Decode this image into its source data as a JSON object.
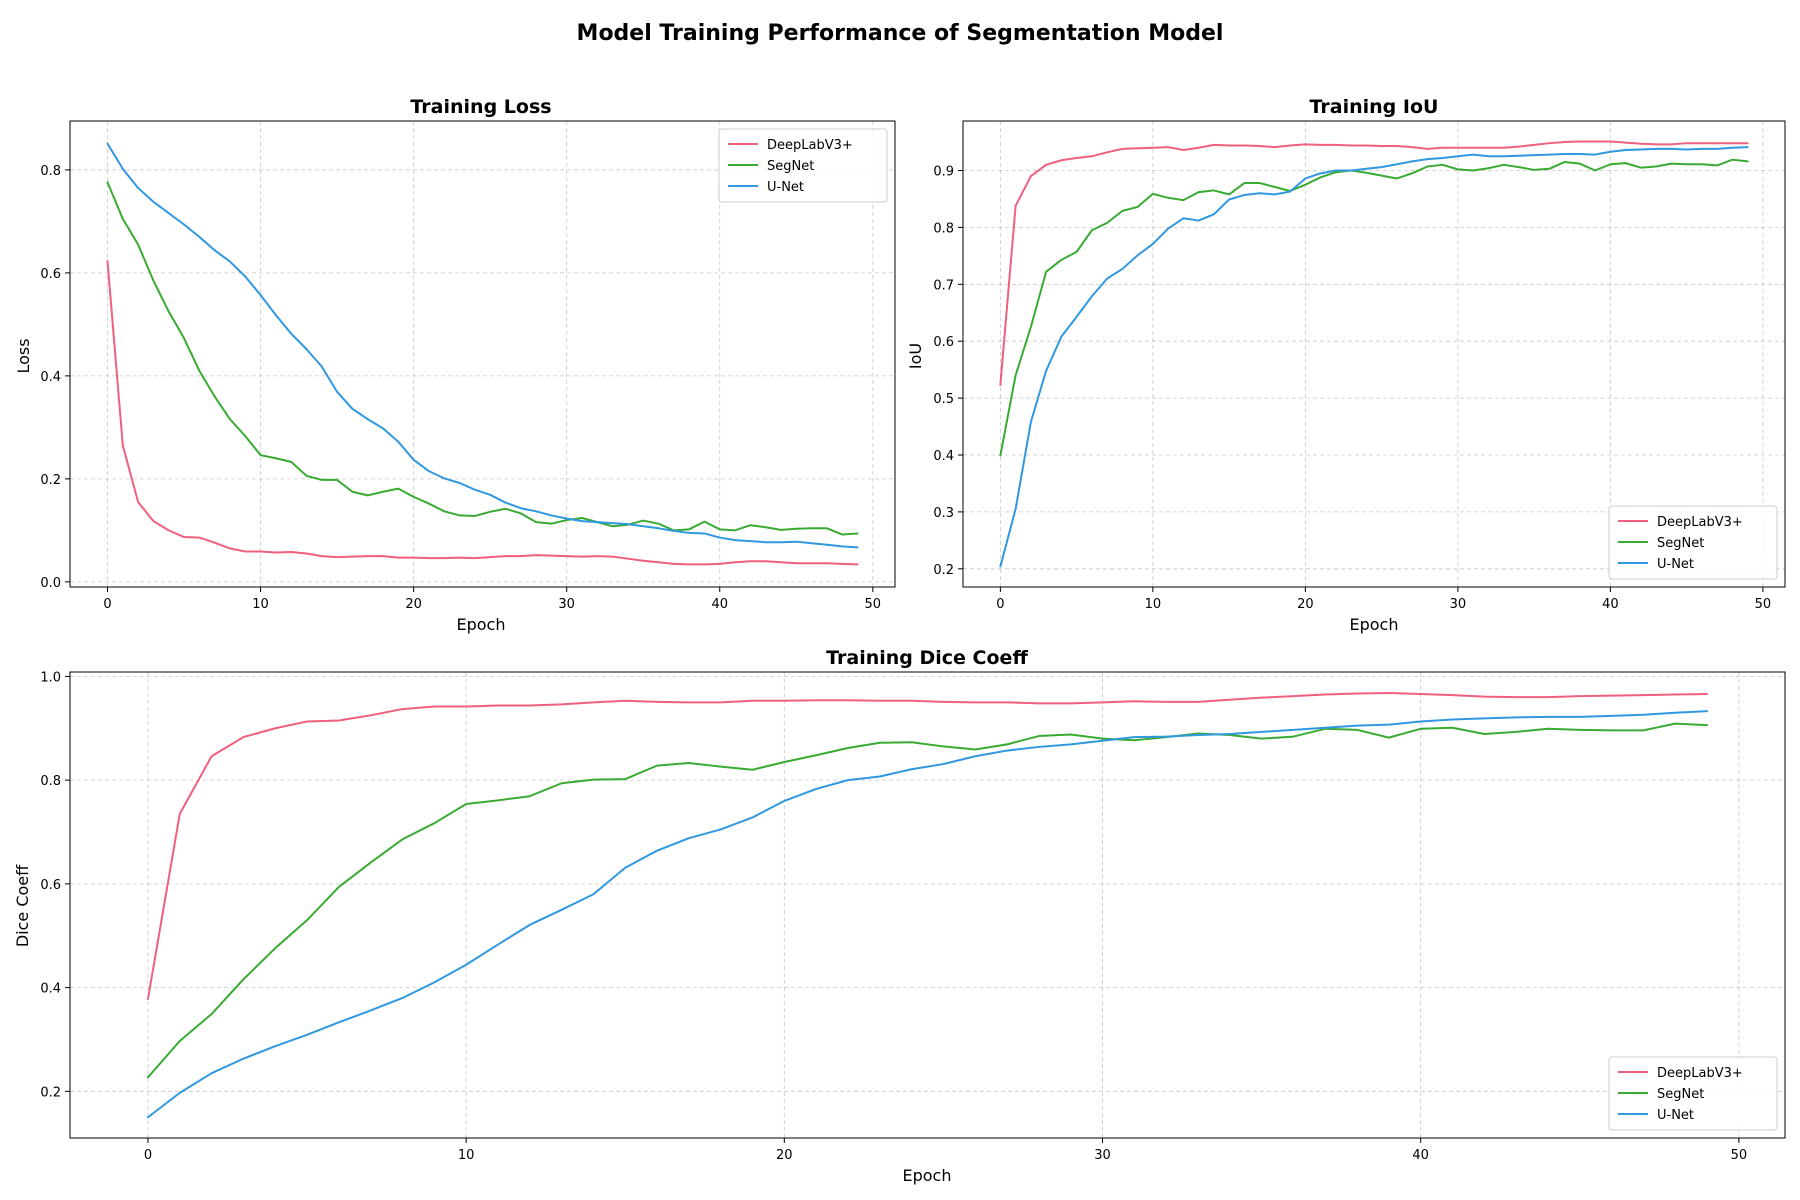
{
  "suptitle": "Model Training Performance of Segmentation Model",
  "colors": {
    "DeepLabV3+": "#f0607c",
    "SegNet": "#3aab32",
    "U-Net": "#3098e0"
  },
  "chart_data": [
    {
      "id": "loss",
      "type": "line",
      "title": "Training Loss",
      "xlabel": "Epoch",
      "ylabel": "Loss",
      "xlim": [
        -2.45,
        51.45
      ],
      "ylim": [
        -0.01,
        0.895
      ],
      "xticks": [
        0,
        10,
        20,
        30,
        40,
        50
      ],
      "yticks": [
        0.0,
        0.2,
        0.4,
        0.6,
        0.8
      ],
      "ytick_decimals": 1,
      "grid": true,
      "legend_position": "upper right",
      "x": [
        0,
        1,
        2,
        3,
        4,
        5,
        6,
        7,
        8,
        9,
        10,
        11,
        12,
        13,
        14,
        15,
        16,
        17,
        18,
        19,
        20,
        21,
        22,
        23,
        24,
        25,
        26,
        27,
        28,
        29,
        30,
        31,
        32,
        33,
        34,
        35,
        36,
        37,
        38,
        39,
        40,
        41,
        42,
        43,
        44,
        45,
        46,
        47,
        48,
        49
      ],
      "series": [
        {
          "name": "DeepLabV3+",
          "values": [
            0.623,
            0.265,
            0.155,
            0.118,
            0.1,
            0.087,
            0.086,
            0.076,
            0.065,
            0.059,
            0.059,
            0.057,
            0.058,
            0.055,
            0.05,
            0.048,
            0.049,
            0.05,
            0.05,
            0.047,
            0.047,
            0.046,
            0.046,
            0.047,
            0.046,
            0.048,
            0.05,
            0.05,
            0.052,
            0.051,
            0.05,
            0.049,
            0.05,
            0.049,
            0.045,
            0.041,
            0.038,
            0.035,
            0.034,
            0.034,
            0.035,
            0.038,
            0.04,
            0.04,
            0.038,
            0.036,
            0.036,
            0.036,
            0.035,
            0.034
          ]
        },
        {
          "name": "SegNet",
          "values": [
            0.776,
            0.705,
            0.655,
            0.585,
            0.525,
            0.473,
            0.41,
            0.36,
            0.316,
            0.283,
            0.246,
            0.24,
            0.233,
            0.206,
            0.198,
            0.198,
            0.175,
            0.168,
            0.175,
            0.181,
            0.165,
            0.152,
            0.137,
            0.129,
            0.128,
            0.136,
            0.142,
            0.133,
            0.116,
            0.113,
            0.12,
            0.124,
            0.116,
            0.108,
            0.111,
            0.119,
            0.113,
            0.1,
            0.102,
            0.117,
            0.102,
            0.1,
            0.11,
            0.106,
            0.101,
            0.103,
            0.104,
            0.104,
            0.092,
            0.094
          ]
        },
        {
          "name": "U-Net",
          "values": [
            0.851,
            0.802,
            0.765,
            0.738,
            0.716,
            0.694,
            0.67,
            0.644,
            0.622,
            0.593,
            0.557,
            0.518,
            0.482,
            0.452,
            0.418,
            0.369,
            0.336,
            0.316,
            0.298,
            0.272,
            0.237,
            0.215,
            0.201,
            0.192,
            0.179,
            0.169,
            0.154,
            0.143,
            0.137,
            0.129,
            0.123,
            0.118,
            0.116,
            0.114,
            0.112,
            0.108,
            0.104,
            0.099,
            0.095,
            0.094,
            0.086,
            0.081,
            0.079,
            0.077,
            0.077,
            0.078,
            0.075,
            0.072,
            0.069,
            0.067
          ]
        }
      ]
    },
    {
      "id": "iou",
      "type": "line",
      "title": "Training IoU",
      "xlabel": "Epoch",
      "ylabel": "IoU",
      "xlim": [
        -2.45,
        51.45
      ],
      "ylim": [
        0.168,
        0.987
      ],
      "xticks": [
        0,
        10,
        20,
        30,
        40,
        50
      ],
      "yticks": [
        0.2,
        0.3,
        0.4,
        0.5,
        0.6,
        0.7,
        0.8,
        0.9
      ],
      "ytick_decimals": 1,
      "grid": true,
      "legend_position": "lower right",
      "x": [
        0,
        1,
        2,
        3,
        4,
        5,
        6,
        7,
        8,
        9,
        10,
        11,
        12,
        13,
        14,
        15,
        16,
        17,
        18,
        19,
        20,
        21,
        22,
        23,
        24,
        25,
        26,
        27,
        28,
        29,
        30,
        31,
        32,
        33,
        34,
        35,
        36,
        37,
        38,
        39,
        40,
        41,
        42,
        43,
        44,
        45,
        46,
        47,
        48,
        49
      ],
      "series": [
        {
          "name": "DeepLabV3+",
          "values": [
            0.523,
            0.838,
            0.89,
            0.91,
            0.918,
            0.922,
            0.925,
            0.932,
            0.938,
            0.939,
            0.94,
            0.941,
            0.936,
            0.94,
            0.945,
            0.944,
            0.944,
            0.943,
            0.941,
            0.944,
            0.946,
            0.945,
            0.945,
            0.944,
            0.944,
            0.943,
            0.943,
            0.941,
            0.938,
            0.94,
            0.94,
            0.94,
            0.94,
            0.94,
            0.942,
            0.945,
            0.948,
            0.95,
            0.951,
            0.951,
            0.951,
            0.949,
            0.947,
            0.946,
            0.946,
            0.948,
            0.948,
            0.948,
            0.948,
            0.948
          ]
        },
        {
          "name": "SegNet",
          "values": [
            0.399,
            0.54,
            0.625,
            0.722,
            0.743,
            0.757,
            0.795,
            0.808,
            0.829,
            0.836,
            0.859,
            0.852,
            0.848,
            0.862,
            0.865,
            0.858,
            0.878,
            0.878,
            0.871,
            0.864,
            0.875,
            0.888,
            0.897,
            0.9,
            0.896,
            0.891,
            0.886,
            0.895,
            0.907,
            0.91,
            0.902,
            0.9,
            0.904,
            0.91,
            0.906,
            0.901,
            0.903,
            0.915,
            0.912,
            0.9,
            0.911,
            0.913,
            0.905,
            0.907,
            0.912,
            0.911,
            0.911,
            0.909,
            0.919,
            0.916
          ]
        },
        {
          "name": "U-Net",
          "values": [
            0.204,
            0.305,
            0.458,
            0.548,
            0.608,
            0.643,
            0.679,
            0.71,
            0.727,
            0.751,
            0.771,
            0.798,
            0.816,
            0.812,
            0.823,
            0.849,
            0.857,
            0.86,
            0.858,
            0.863,
            0.886,
            0.895,
            0.9,
            0.9,
            0.903,
            0.906,
            0.911,
            0.916,
            0.92,
            0.922,
            0.925,
            0.928,
            0.925,
            0.925,
            0.926,
            0.927,
            0.928,
            0.929,
            0.929,
            0.928,
            0.933,
            0.936,
            0.937,
            0.938,
            0.938,
            0.937,
            0.938,
            0.938,
            0.94,
            0.941
          ]
        }
      ]
    },
    {
      "id": "dice",
      "type": "line",
      "title": "Training Dice Coeff",
      "xlabel": "Epoch",
      "ylabel": "Dice Coeff",
      "xlim": [
        -2.45,
        51.45
      ],
      "ylim": [
        0.11,
        1.0085
      ],
      "xticks": [
        0,
        10,
        20,
        30,
        40,
        50
      ],
      "yticks": [
        0.2,
        0.4,
        0.6,
        0.8,
        1.0
      ],
      "ytick_decimals": 1,
      "grid": true,
      "legend_position": "lower right",
      "x": [
        0,
        1,
        2,
        3,
        4,
        5,
        6,
        7,
        8,
        9,
        10,
        11,
        12,
        13,
        14,
        15,
        16,
        17,
        18,
        19,
        20,
        21,
        22,
        23,
        24,
        25,
        26,
        27,
        28,
        29,
        30,
        31,
        32,
        33,
        34,
        35,
        36,
        37,
        38,
        39,
        40,
        41,
        42,
        43,
        44,
        45,
        46,
        47,
        48,
        49
      ],
      "series": [
        {
          "name": "DeepLabV3+",
          "values": [
            0.378,
            0.735,
            0.846,
            0.883,
            0.9,
            0.913,
            0.915,
            0.925,
            0.937,
            0.942,
            0.942,
            0.944,
            0.944,
            0.946,
            0.95,
            0.953,
            0.951,
            0.95,
            0.95,
            0.953,
            0.953,
            0.954,
            0.954,
            0.953,
            0.953,
            0.951,
            0.95,
            0.95,
            0.948,
            0.948,
            0.95,
            0.952,
            0.951,
            0.951,
            0.955,
            0.959,
            0.962,
            0.965,
            0.967,
            0.968,
            0.966,
            0.964,
            0.961,
            0.96,
            0.96,
            0.962,
            0.963,
            0.964,
            0.965,
            0.966
          ]
        },
        {
          "name": "SegNet",
          "values": [
            0.227,
            0.297,
            0.349,
            0.416,
            0.476,
            0.53,
            0.594,
            0.641,
            0.686,
            0.717,
            0.754,
            0.761,
            0.769,
            0.794,
            0.801,
            0.802,
            0.828,
            0.833,
            0.826,
            0.82,
            0.835,
            0.848,
            0.862,
            0.872,
            0.873,
            0.865,
            0.859,
            0.869,
            0.885,
            0.888,
            0.88,
            0.877,
            0.883,
            0.89,
            0.887,
            0.88,
            0.884,
            0.899,
            0.897,
            0.882,
            0.899,
            0.901,
            0.889,
            0.893,
            0.899,
            0.897,
            0.896,
            0.896,
            0.909,
            0.906
          ]
        },
        {
          "name": "U-Net",
          "values": [
            0.15,
            0.197,
            0.235,
            0.263,
            0.287,
            0.309,
            0.333,
            0.356,
            0.38,
            0.41,
            0.444,
            0.483,
            0.521,
            0.55,
            0.58,
            0.631,
            0.664,
            0.688,
            0.705,
            0.728,
            0.76,
            0.783,
            0.8,
            0.807,
            0.821,
            0.831,
            0.846,
            0.857,
            0.864,
            0.869,
            0.876,
            0.883,
            0.884,
            0.887,
            0.889,
            0.893,
            0.897,
            0.901,
            0.905,
            0.907,
            0.913,
            0.917,
            0.919,
            0.921,
            0.922,
            0.922,
            0.924,
            0.926,
            0.93,
            0.933
          ]
        }
      ]
    }
  ]
}
